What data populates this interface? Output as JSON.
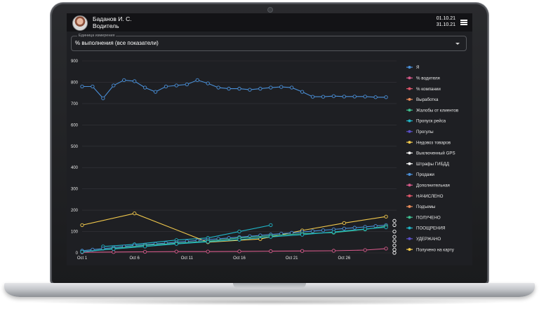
{
  "header": {
    "user_name": "Баданов И. С.",
    "user_role": "Водитель",
    "date_from": "01.10.21",
    "date_to": "31.10.21",
    "menu_icon": "hamburger-menu-icon"
  },
  "filter": {
    "legend": "Единица измерения",
    "selected": "% выполнения (все показатели)"
  },
  "chart_data": {
    "type": "line",
    "ylim": [
      0,
      900
    ],
    "yticks": [
      0,
      100,
      200,
      300,
      400,
      500,
      600,
      700,
      800,
      900
    ],
    "x_ticks": [
      {
        "day": 1,
        "label": "Oct 1"
      },
      {
        "day": 6,
        "label": "Oct 6"
      },
      {
        "day": 11,
        "label": "Oct 11"
      },
      {
        "day": 16,
        "label": "Oct 16"
      },
      {
        "day": 21,
        "label": "Oct 21"
      },
      {
        "day": 26,
        "label": "Oct 26"
      }
    ],
    "legend_position": "right",
    "series": [
      {
        "name": "Я",
        "color": "#4a90d9",
        "markers": true,
        "x": [
          1,
          2,
          3,
          4,
          5,
          6,
          7,
          8,
          9,
          10,
          11,
          12,
          13,
          14,
          15,
          16,
          17,
          18,
          19,
          20,
          21,
          22,
          23,
          24,
          25,
          26,
          27,
          28,
          29,
          30
        ],
        "y": [
          780,
          780,
          725,
          785,
          810,
          805,
          775,
          755,
          780,
          785,
          790,
          810,
          795,
          775,
          770,
          770,
          765,
          770,
          775,
          778,
          775,
          755,
          732,
          732,
          735,
          733,
          733,
          733,
          730,
          730
        ]
      },
      {
        "name": "% водителя",
        "color": "#d65a8a",
        "markers": false,
        "x": [],
        "y": []
      },
      {
        "name": "% компании",
        "color": "#e0566a",
        "markers": false,
        "x": [],
        "y": []
      },
      {
        "name": "Выработка",
        "color": "#e88c5a",
        "markers": false,
        "x": [],
        "y": []
      },
      {
        "name": "Жалобы от клиентов",
        "color": "#3fbf8f",
        "markers": false,
        "x": [],
        "y": []
      },
      {
        "name": "Пропуск рейса",
        "color": "#1fb5c7",
        "markers": true,
        "x": [
          3,
          6,
          10,
          13,
          16,
          19
        ],
        "y": [
          30,
          40,
          60,
          70,
          100,
          130
        ]
      },
      {
        "name": "Прогулы",
        "color": "#5a4fc7",
        "markers": false,
        "x": [],
        "y": []
      },
      {
        "name": "Недовоз товаров",
        "color": "#f2c94c",
        "markers": true,
        "x": [
          1,
          6,
          13,
          18,
          22,
          26,
          30
        ],
        "y": [
          130,
          185,
          50,
          65,
          105,
          140,
          170
        ]
      },
      {
        "name": "Выключенный GPS",
        "color": "#f5f5f5",
        "markers": false,
        "x": [],
        "y": []
      },
      {
        "name": "Штрафы ГИБДД",
        "color": "#f5f5f5",
        "markers": false,
        "x": [],
        "y": []
      },
      {
        "name": "Продажи",
        "color": "#4a90d9",
        "markers": true,
        "x": [
          1,
          2,
          3,
          4,
          5,
          6,
          7,
          8,
          9,
          10,
          11,
          12,
          13,
          14,
          15,
          16,
          17,
          18,
          19,
          20,
          21,
          22,
          23,
          24,
          25,
          26,
          27,
          28,
          29,
          30
        ],
        "y": [
          10,
          15,
          20,
          25,
          30,
          35,
          38,
          42,
          46,
          50,
          54,
          58,
          62,
          66,
          70,
          74,
          78,
          82,
          86,
          90,
          94,
          98,
          102,
          106,
          110,
          114,
          118,
          122,
          126,
          130
        ]
      },
      {
        "name": "Дополнительная",
        "color": "#d65a8a",
        "markers": true,
        "x": [
          1,
          4,
          7,
          10,
          13,
          16,
          19,
          22,
          25,
          28,
          30
        ],
        "y": [
          3,
          4,
          5,
          6,
          6,
          7,
          8,
          9,
          10,
          13,
          20
        ]
      },
      {
        "name": "НАЧИСЛЕНО",
        "color": "#e0566a",
        "markers": false,
        "x": [],
        "y": []
      },
      {
        "name": "Подъемы",
        "color": "#e88c5a",
        "markers": false,
        "x": [],
        "y": []
      },
      {
        "name": "ПОЛУЧЕНО",
        "color": "#3fbf8f",
        "markers": true,
        "x": [
          1,
          4,
          7,
          10,
          13,
          16,
          19,
          22,
          25,
          28,
          30
        ],
        "y": [
          5,
          20,
          35,
          45,
          55,
          70,
          80,
          90,
          95,
          110,
          125
        ]
      },
      {
        "name": "ПООЩРЕНИЯ",
        "color": "#1fb5c7",
        "markers": true,
        "x": [
          1,
          4,
          7,
          10,
          13,
          16,
          19,
          22,
          25,
          28,
          30
        ],
        "y": [
          5,
          18,
          30,
          42,
          52,
          62,
          75,
          85,
          98,
          112,
          120
        ]
      },
      {
        "name": "УДЕРЖАНО",
        "color": "#5a4fc7",
        "markers": false,
        "x": [],
        "y": []
      },
      {
        "name": "Получено на карту",
        "color": "#f2c94c",
        "markers": false,
        "x": [],
        "y": []
      }
    ]
  }
}
